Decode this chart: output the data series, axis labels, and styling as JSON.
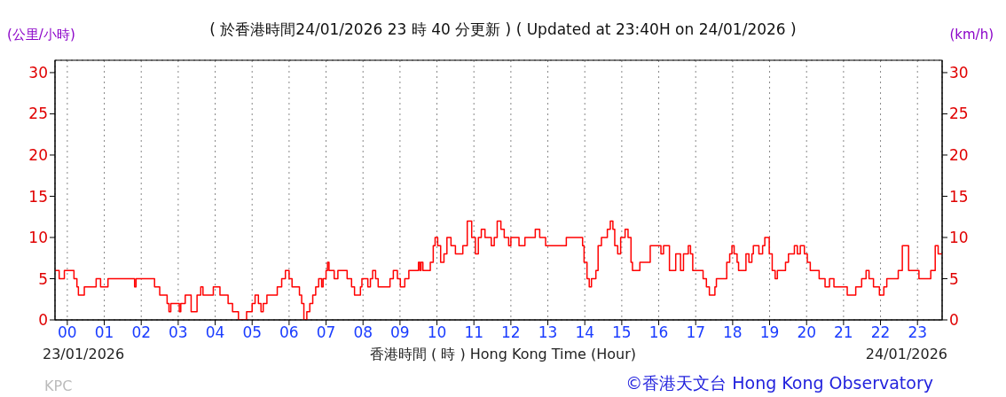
{
  "chart_data": {
    "type": "step",
    "title": "( 於香港時間24/01/2026 23 時 40 分更新 ) ( Updated at 23:40H on 24/01/2026 )",
    "xlabel": "香港時間 ( 時 )  Hong Kong Time (Hour)",
    "ylabel": "(公里/小時)",
    "y2label": "(km/h)",
    "annotations": [
      "23/01/2026",
      "24/01/2026",
      "KPC",
      "©香港天文台 Hong Kong Observatory"
    ],
    "x": [
      -0.333,
      -0.22,
      -0.08,
      0.18,
      0.26,
      0.3,
      0.46,
      0.78,
      0.9,
      1.1,
      1.82,
      1.86,
      2.22,
      2.36,
      2.5,
      2.7,
      2.75,
      2.8,
      3.03,
      3.07,
      3.19,
      3.35,
      3.51,
      3.61,
      3.67,
      3.95,
      4.13,
      4.35,
      4.47,
      4.63,
      4.85,
      5.0,
      5.08,
      5.17,
      5.24,
      5.3,
      5.4,
      5.68,
      5.8,
      5.9,
      6.0,
      6.08,
      6.28,
      6.34,
      6.4,
      6.48,
      6.56,
      6.64,
      6.72,
      6.8,
      6.88,
      6.92,
      7.0,
      7.04,
      7.08,
      7.22,
      7.32,
      7.57,
      7.69,
      7.77,
      7.93,
      7.97,
      8.13,
      8.2,
      8.26,
      8.34,
      8.41,
      8.73,
      8.82,
      8.93,
      9.01,
      9.13,
      9.24,
      9.5,
      9.54,
      9.57,
      9.62,
      9.82,
      9.9,
      9.95,
      10.02,
      10.1,
      10.19,
      10.27,
      10.38,
      10.5,
      10.7,
      10.82,
      10.94,
      11.04,
      11.12,
      11.2,
      11.3,
      11.47,
      11.55,
      11.63,
      11.73,
      11.82,
      11.94,
      12.0,
      12.22,
      12.38,
      12.66,
      12.78,
      12.94,
      13.5,
      13.94,
      13.98,
      14.06,
      14.12,
      14.18,
      14.3,
      14.36,
      14.45,
      14.61,
      14.69,
      14.76,
      14.81,
      14.89,
      14.97,
      15.09,
      15.17,
      15.25,
      15.29,
      15.49,
      15.69,
      15.77,
      16.06,
      16.13,
      16.29,
      16.46,
      16.59,
      16.67,
      16.8,
      16.86,
      16.92,
      17.2,
      17.29,
      17.37,
      17.52,
      17.56,
      17.84,
      17.92,
      17.98,
      18.04,
      18.12,
      18.16,
      18.36,
      18.44,
      18.52,
      18.56,
      18.71,
      18.81,
      18.87,
      18.99,
      19.07,
      19.15,
      19.21,
      19.43,
      19.51,
      19.67,
      19.75,
      19.83,
      19.94,
      20.02,
      20.1,
      20.34,
      20.5,
      20.62,
      20.74,
      21.1,
      21.33,
      21.49,
      21.61,
      21.69,
      21.81,
      21.97,
      22.09,
      22.17,
      22.48,
      22.59,
      22.76,
      23.04,
      23.36,
      23.48,
      23.56,
      23.667
    ],
    "series": [
      {
        "color": "#ff0000",
        "values": [
          6,
          5,
          6,
          5,
          4,
          3,
          4,
          5,
          4,
          5,
          4,
          5,
          5,
          4,
          3,
          2,
          1,
          2,
          1,
          2,
          3,
          1,
          3,
          4,
          3,
          4,
          3,
          2,
          1,
          0,
          1,
          2,
          3,
          2,
          1,
          2,
          3,
          4,
          5,
          6,
          5,
          4,
          3,
          2,
          0,
          1,
          2,
          3,
          4,
          5,
          4,
          5,
          6,
          7,
          6,
          5,
          6,
          5,
          4,
          3,
          4,
          5,
          4,
          5,
          6,
          5,
          4,
          5,
          6,
          5,
          4,
          5,
          6,
          7,
          6,
          7,
          6,
          7,
          9,
          10,
          9,
          7,
          8,
          10,
          9,
          8,
          9,
          12,
          10,
          8,
          10,
          11,
          10,
          9,
          10,
          12,
          11,
          10,
          9,
          10,
          9,
          10,
          11,
          10,
          9,
          10,
          9,
          7,
          5,
          4,
          5,
          6,
          9,
          10,
          11,
          12,
          11,
          9,
          8,
          10,
          11,
          10,
          7,
          6,
          7,
          7,
          9,
          8,
          9,
          6,
          8,
          6,
          8,
          9,
          8,
          6,
          5,
          4,
          3,
          4,
          5,
          7,
          8,
          9,
          8,
          7,
          6,
          8,
          7,
          8,
          9,
          8,
          9,
          10,
          8,
          6,
          5,
          6,
          7,
          8,
          9,
          8,
          9,
          8,
          7,
          6,
          5,
          4,
          5,
          4,
          3,
          4,
          5,
          6,
          5,
          4,
          3,
          4,
          5,
          6,
          9,
          6,
          5,
          6,
          9,
          8,
          8
        ]
      }
    ],
    "xlim": [
      -0.333,
      23.667
    ],
    "ylim": [
      0,
      31.5
    ],
    "y2lim": [
      0,
      31.5
    ],
    "xticks": [
      {
        "value": 0,
        "label": "00"
      },
      {
        "value": 1,
        "label": "01"
      },
      {
        "value": 2,
        "label": "02"
      },
      {
        "value": 3,
        "label": "03"
      },
      {
        "value": 4,
        "label": "04"
      },
      {
        "value": 5,
        "label": "05"
      },
      {
        "value": 6,
        "label": "06"
      },
      {
        "value": 7,
        "label": "07"
      },
      {
        "value": 8,
        "label": "08"
      },
      {
        "value": 9,
        "label": "09"
      },
      {
        "value": 10,
        "label": "10"
      },
      {
        "value": 11,
        "label": "11"
      },
      {
        "value": 12,
        "label": "12"
      },
      {
        "value": 13,
        "label": "13"
      },
      {
        "value": 14,
        "label": "14"
      },
      {
        "value": 15,
        "label": "15"
      },
      {
        "value": 16,
        "label": "16"
      },
      {
        "value": 17,
        "label": "17"
      },
      {
        "value": 18,
        "label": "18"
      },
      {
        "value": 19,
        "label": "19"
      },
      {
        "value": 20,
        "label": "20"
      },
      {
        "value": 21,
        "label": "21"
      },
      {
        "value": 22,
        "label": "22"
      },
      {
        "value": 23,
        "label": "23"
      }
    ],
    "yticks": [
      0,
      5,
      10,
      15,
      20,
      25,
      30
    ],
    "y2ticks": [
      0,
      5,
      10,
      15,
      20,
      25,
      30
    ],
    "grid": true,
    "marker": "none",
    "line_style": "solid"
  }
}
